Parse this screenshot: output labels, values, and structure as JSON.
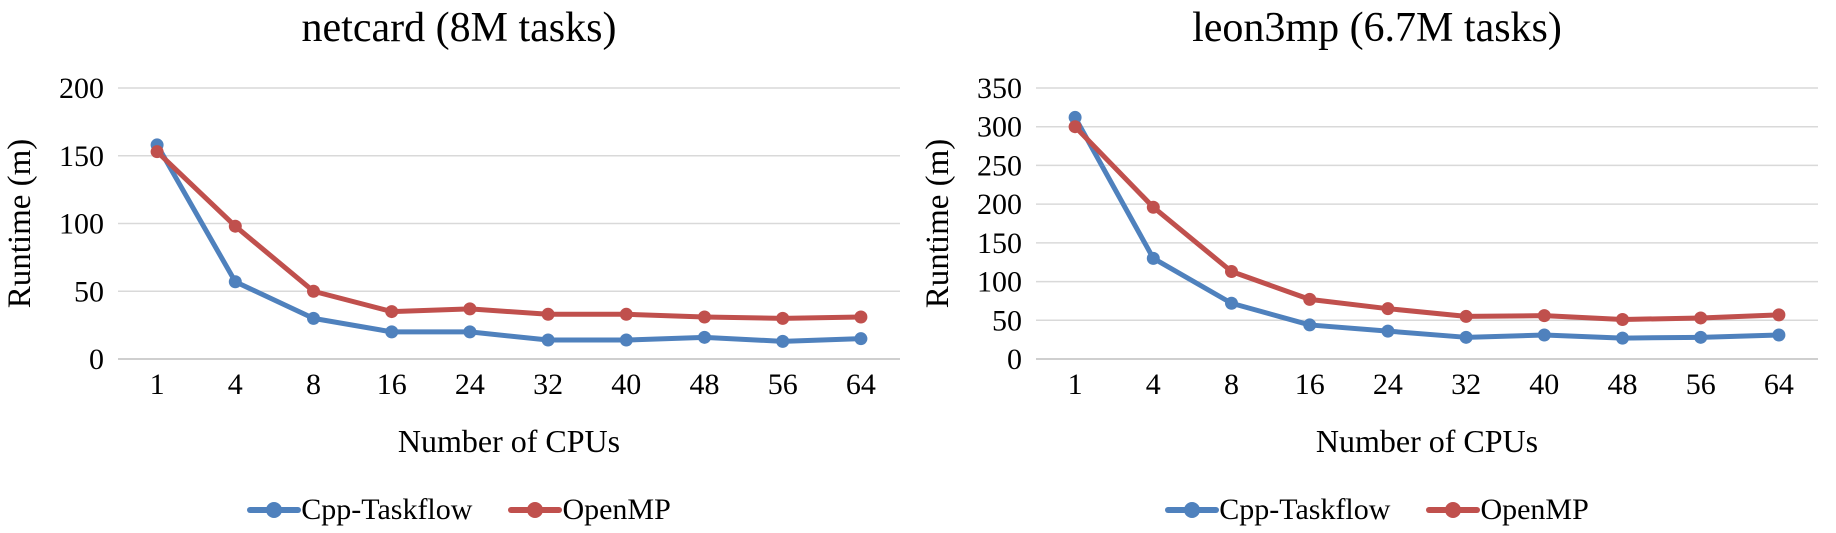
{
  "figure": {
    "background": "#ffffff",
    "text_color": "#000000",
    "gridline_color": "#d9d9d9",
    "axis_line_color": "#bfbfbf"
  },
  "chart_data": [
    {
      "type": "line",
      "title": "netcard (8M tasks)",
      "xlabel": "Number of CPUs",
      "ylabel": "Runtime (m)",
      "categories": [
        "1",
        "4",
        "8",
        "16",
        "24",
        "32",
        "40",
        "48",
        "56",
        "64"
      ],
      "ylim": [
        0,
        200
      ],
      "ytick_step": 50,
      "ytick_labels": [
        "0",
        "50",
        "100",
        "150",
        "200"
      ],
      "grid": "horizontal",
      "legend_position": "bottom",
      "series": [
        {
          "name": "Cpp-Taskflow",
          "color": "#4F81BD",
          "marker": "circle",
          "values": [
            158,
            57,
            30,
            20,
            20,
            14,
            14,
            16,
            13,
            15
          ]
        },
        {
          "name": "OpenMP",
          "color": "#C0504D",
          "marker": "circle",
          "values": [
            153,
            98,
            50,
            35,
            37,
            33,
            33,
            31,
            30,
            31
          ]
        }
      ]
    },
    {
      "type": "line",
      "title": "leon3mp (6.7M tasks)",
      "xlabel": "Number of CPUs",
      "ylabel": "Runtime (m)",
      "categories": [
        "1",
        "4",
        "8",
        "16",
        "24",
        "32",
        "40",
        "48",
        "56",
        "64"
      ],
      "ylim": [
        0,
        350
      ],
      "ytick_step": 50,
      "ytick_labels": [
        "0",
        "50",
        "100",
        "150",
        "200",
        "250",
        "300",
        "350"
      ],
      "grid": "horizontal",
      "legend_position": "bottom",
      "series": [
        {
          "name": "Cpp-Taskflow",
          "color": "#4F81BD",
          "marker": "circle",
          "values": [
            312,
            130,
            72,
            44,
            36,
            28,
            31,
            27,
            28,
            31
          ]
        },
        {
          "name": "OpenMP",
          "color": "#C0504D",
          "marker": "circle",
          "values": [
            300,
            196,
            113,
            77,
            65,
            55,
            56,
            51,
            53,
            57
          ]
        }
      ]
    }
  ]
}
